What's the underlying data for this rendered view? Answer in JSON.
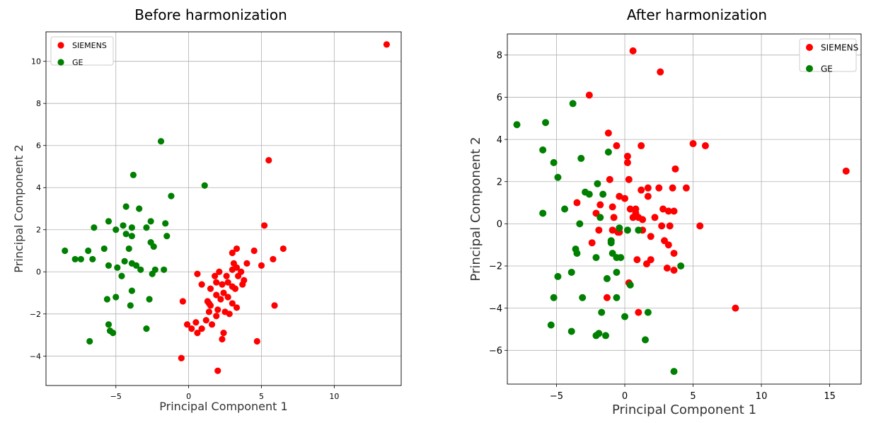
{
  "chart_data": [
    {
      "type": "scatter",
      "title": "Before harmonization",
      "xlabel": "Principal Component 1",
      "ylabel": "Principal Component 2",
      "xlim": [
        -9.8,
        14.6
      ],
      "ylim": [
        -5.4,
        11.4
      ],
      "xticks": [
        -5,
        0,
        5,
        10
      ],
      "yticks": [
        -4,
        -2,
        0,
        2,
        4,
        6,
        8,
        10
      ],
      "grid": true,
      "legend_position": "top-left",
      "series": [
        {
          "name": "SIEMENS",
          "color": "#ff0000",
          "points": [
            [
              13.6,
              10.8
            ],
            [
              5.5,
              5.3
            ],
            [
              5.2,
              2.2
            ],
            [
              6.5,
              1.1
            ],
            [
              5.8,
              0.6
            ],
            [
              5.0,
              0.3
            ],
            [
              4.5,
              1.0
            ],
            [
              3.3,
              1.1
            ],
            [
              3.0,
              0.9
            ],
            [
              4.0,
              0.4
            ],
            [
              3.1,
              0.4
            ],
            [
              3.3,
              0.2
            ],
            [
              3.6,
              0.0
            ],
            [
              3.4,
              -0.2
            ],
            [
              3.8,
              -0.4
            ],
            [
              3.7,
              -0.6
            ],
            [
              2.1,
              0.0
            ],
            [
              1.8,
              -0.2
            ],
            [
              1.9,
              -0.5
            ],
            [
              0.6,
              -0.1
            ],
            [
              0.9,
              -0.6
            ],
            [
              1.5,
              -0.8
            ],
            [
              2.3,
              -0.6
            ],
            [
              2.7,
              -0.5
            ],
            [
              3.0,
              -0.7
            ],
            [
              3.2,
              -0.8
            ],
            [
              2.4,
              -1.0
            ],
            [
              2.2,
              -1.3
            ],
            [
              1.9,
              -1.1
            ],
            [
              1.3,
              -1.4
            ],
            [
              1.5,
              -1.6
            ],
            [
              1.4,
              -1.9
            ],
            [
              2.0,
              -1.8
            ],
            [
              2.7,
              -1.2
            ],
            [
              3.0,
              -1.5
            ],
            [
              3.3,
              -1.7
            ],
            [
              2.5,
              -1.9
            ],
            [
              2.8,
              -2.0
            ],
            [
              1.9,
              -2.1
            ],
            [
              1.2,
              -2.3
            ],
            [
              0.9,
              -2.7
            ],
            [
              1.6,
              -2.5
            ],
            [
              0.5,
              -2.4
            ],
            [
              -0.1,
              -2.5
            ],
            [
              0.2,
              -2.7
            ],
            [
              0.6,
              -2.9
            ],
            [
              2.4,
              -2.9
            ],
            [
              2.3,
              -3.2
            ],
            [
              4.7,
              -3.3
            ],
            [
              5.9,
              -1.6
            ],
            [
              -0.4,
              -1.4
            ],
            [
              -0.5,
              -4.1
            ],
            [
              2.0,
              -4.7
            ],
            [
              1.4,
              -1.5
            ],
            [
              2.6,
              -0.2
            ],
            [
              3.0,
              0.1
            ]
          ]
        },
        {
          "name": "GE",
          "color": "#008000",
          "points": [
            [
              -1.9,
              6.2
            ],
            [
              1.1,
              4.1
            ],
            [
              -3.8,
              4.6
            ],
            [
              -1.2,
              3.6
            ],
            [
              -4.3,
              3.1
            ],
            [
              -3.4,
              3.0
            ],
            [
              -5.5,
              2.4
            ],
            [
              -2.6,
              2.4
            ],
            [
              -6.5,
              2.1
            ],
            [
              -5.0,
              2.0
            ],
            [
              -4.5,
              2.2
            ],
            [
              -3.9,
              2.1
            ],
            [
              -1.6,
              2.3
            ],
            [
              -2.9,
              2.1
            ],
            [
              -4.3,
              1.8
            ],
            [
              -3.9,
              1.7
            ],
            [
              -1.5,
              1.7
            ],
            [
              -5.8,
              1.1
            ],
            [
              -6.9,
              1.0
            ],
            [
              -8.5,
              1.0
            ],
            [
              -2.6,
              1.4
            ],
            [
              -2.4,
              1.2
            ],
            [
              -4.1,
              1.1
            ],
            [
              -7.4,
              0.6
            ],
            [
              -7.8,
              0.6
            ],
            [
              -6.6,
              0.6
            ],
            [
              -5.5,
              0.3
            ],
            [
              -4.9,
              0.2
            ],
            [
              -3.9,
              0.4
            ],
            [
              -3.6,
              0.3
            ],
            [
              -3.3,
              0.1
            ],
            [
              -2.3,
              0.1
            ],
            [
              -1.7,
              0.1
            ],
            [
              -4.6,
              -0.2
            ],
            [
              -2.5,
              -0.1
            ],
            [
              -5.0,
              -1.2
            ],
            [
              -5.6,
              -1.3
            ],
            [
              -4.0,
              -1.6
            ],
            [
              -2.7,
              -1.3
            ],
            [
              -5.5,
              -2.5
            ],
            [
              -5.4,
              -2.8
            ],
            [
              -5.2,
              -2.9
            ],
            [
              -6.8,
              -3.3
            ],
            [
              -2.9,
              -2.7
            ],
            [
              -3.9,
              -0.9
            ],
            [
              -4.4,
              0.5
            ]
          ]
        }
      ]
    },
    {
      "type": "scatter",
      "title": "After harmonization",
      "xlabel": "Principal Component 1",
      "ylabel": "Principal Component 2",
      "xlim": [
        -8.6,
        17.3
      ],
      "ylim": [
        -7.6,
        9.0
      ],
      "xticks": [
        -5,
        0,
        5,
        10,
        15
      ],
      "yticks": [
        -6,
        -4,
        -2,
        0,
        2,
        4,
        6,
        8
      ],
      "grid": true,
      "legend_position": "top-right",
      "series": [
        {
          "name": "SIEMENS",
          "color": "#ff0000",
          "points": [
            [
              0.6,
              8.2
            ],
            [
              2.6,
              7.2
            ],
            [
              -2.6,
              6.1
            ],
            [
              16.2,
              2.5
            ],
            [
              5.0,
              3.8
            ],
            [
              5.9,
              3.7
            ],
            [
              1.2,
              3.7
            ],
            [
              -0.6,
              3.7
            ],
            [
              -1.2,
              4.3
            ],
            [
              0.2,
              3.2
            ],
            [
              0.2,
              2.9
            ],
            [
              3.7,
              2.6
            ],
            [
              -1.1,
              2.1
            ],
            [
              0.3,
              2.1
            ],
            [
              1.7,
              1.7
            ],
            [
              2.5,
              1.7
            ],
            [
              3.5,
              1.7
            ],
            [
              4.5,
              1.7
            ],
            [
              1.2,
              1.6
            ],
            [
              1.7,
              1.3
            ],
            [
              -0.4,
              1.3
            ],
            [
              0.0,
              1.2
            ],
            [
              -3.5,
              1.0
            ],
            [
              -1.8,
              0.9
            ],
            [
              -0.9,
              0.8
            ],
            [
              0.4,
              0.7
            ],
            [
              0.8,
              0.7
            ],
            [
              2.8,
              0.7
            ],
            [
              3.2,
              0.6
            ],
            [
              3.6,
              0.6
            ],
            [
              0.6,
              0.3
            ],
            [
              1.0,
              0.3
            ],
            [
              1.3,
              0.2
            ],
            [
              -0.8,
              0.3
            ],
            [
              -2.1,
              0.5
            ],
            [
              0.8,
              0.5
            ],
            [
              5.5,
              -0.1
            ],
            [
              2.7,
              -0.1
            ],
            [
              3.3,
              -0.1
            ],
            [
              1.3,
              -0.3
            ],
            [
              -0.9,
              -0.3
            ],
            [
              -0.5,
              -0.4
            ],
            [
              -1.9,
              -0.3
            ],
            [
              1.9,
              -0.6
            ],
            [
              -2.4,
              -0.9
            ],
            [
              2.9,
              -0.8
            ],
            [
              3.2,
              -1.0
            ],
            [
              3.6,
              -1.4
            ],
            [
              0.9,
              -1.7
            ],
            [
              1.9,
              -1.7
            ],
            [
              1.6,
              -1.9
            ],
            [
              3.1,
              -2.1
            ],
            [
              3.6,
              -2.2
            ],
            [
              0.3,
              -2.8
            ],
            [
              -1.3,
              -3.5
            ],
            [
              1.0,
              -4.2
            ],
            [
              8.1,
              -4.0
            ],
            [
              -0.4,
              -0.4
            ],
            [
              2.2,
              0.3
            ]
          ]
        },
        {
          "name": "GE",
          "color": "#008000",
          "points": [
            [
              -7.9,
              4.7
            ],
            [
              -5.8,
              4.8
            ],
            [
              -3.8,
              5.7
            ],
            [
              -6.0,
              3.5
            ],
            [
              -5.2,
              2.9
            ],
            [
              -3.2,
              3.1
            ],
            [
              -1.2,
              3.4
            ],
            [
              -4.9,
              2.2
            ],
            [
              -2.0,
              1.9
            ],
            [
              -2.9,
              1.5
            ],
            [
              -2.6,
              1.4
            ],
            [
              -1.6,
              1.4
            ],
            [
              -6.0,
              0.5
            ],
            [
              -4.4,
              0.7
            ],
            [
              -1.8,
              0.3
            ],
            [
              -3.3,
              0.0
            ],
            [
              -0.4,
              -0.2
            ],
            [
              0.2,
              -0.3
            ],
            [
              1.0,
              -0.3
            ],
            [
              -1.0,
              -0.8
            ],
            [
              -3.6,
              -1.2
            ],
            [
              -3.5,
              -1.4
            ],
            [
              -2.1,
              -1.6
            ],
            [
              -0.6,
              -1.6
            ],
            [
              -0.9,
              -1.4
            ],
            [
              4.1,
              -2.0
            ],
            [
              -3.9,
              -2.3
            ],
            [
              -0.6,
              -2.3
            ],
            [
              -4.9,
              -2.5
            ],
            [
              -1.3,
              -2.6
            ],
            [
              0.4,
              -2.9
            ],
            [
              -5.2,
              -3.5
            ],
            [
              -3.1,
              -3.5
            ],
            [
              -0.6,
              -3.5
            ],
            [
              -1.7,
              -4.2
            ],
            [
              0.0,
              -4.4
            ],
            [
              1.7,
              -4.2
            ],
            [
              -5.4,
              -4.8
            ],
            [
              -3.9,
              -5.1
            ],
            [
              -2.1,
              -5.3
            ],
            [
              -1.9,
              -5.2
            ],
            [
              -1.4,
              -5.3
            ],
            [
              1.5,
              -5.5
            ],
            [
              3.6,
              -7.0
            ],
            [
              -0.3,
              -1.6
            ],
            [
              -1.0,
              -0.9
            ]
          ]
        }
      ]
    }
  ]
}
